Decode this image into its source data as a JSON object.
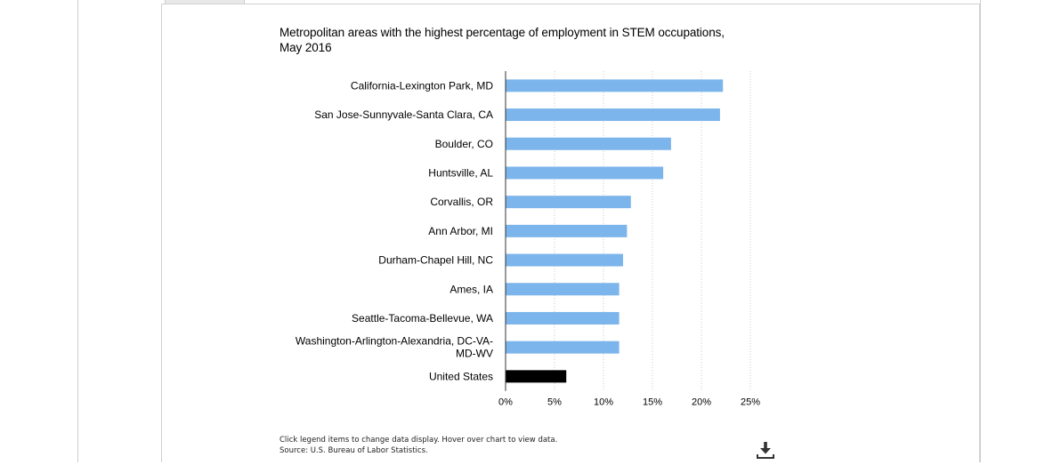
{
  "chart_data": {
    "type": "bar",
    "orientation": "horizontal",
    "title": "Metropolitan areas with the highest percentage of employment in STEM occupations, May 2016",
    "categories": [
      "California-Lexington Park, MD",
      "San Jose-Sunnyvale-Santa Clara, CA",
      "Boulder, CO",
      "Huntsville, AL",
      "Corvallis, OR",
      "Ann Arbor, MI",
      "Durham-Chapel Hill, NC",
      "Ames, IA",
      "Seattle-Tacoma-Bellevue, WA",
      "Washington-Arlington-Alexandria, DC-VA-MD-WV",
      "United States"
    ],
    "label_lines": [
      [
        "California-Lexington Park, MD"
      ],
      [
        "San Jose-Sunnyvale-Santa Clara, CA"
      ],
      [
        "Boulder, CO"
      ],
      [
        "Huntsville, AL"
      ],
      [
        "Corvallis, OR"
      ],
      [
        "Ann Arbor, MI"
      ],
      [
        "Durham-Chapel Hill, NC"
      ],
      [
        "Ames, IA"
      ],
      [
        "Seattle-Tacoma-Bellevue, WA"
      ],
      [
        "Washington-Arlington-Alexandria, DC-VA-",
        "MD-WV"
      ],
      [
        "United States"
      ]
    ],
    "values": [
      22.2,
      21.9,
      16.9,
      16.1,
      12.8,
      12.4,
      12.0,
      11.6,
      11.6,
      11.6,
      6.2
    ],
    "bar_colors": [
      "#7cb5ec",
      "#7cb5ec",
      "#7cb5ec",
      "#7cb5ec",
      "#7cb5ec",
      "#7cb5ec",
      "#7cb5ec",
      "#7cb5ec",
      "#7cb5ec",
      "#7cb5ec",
      "#000000"
    ],
    "xlim": [
      0,
      25
    ],
    "xticks": [
      0,
      5,
      10,
      15,
      20,
      25
    ],
    "xtick_labels": [
      "0%",
      "5%",
      "10%",
      "15%",
      "20%",
      "25%"
    ],
    "grid": true,
    "xlabel": "",
    "ylabel": ""
  },
  "footnote": {
    "line1": "Click legend items to change data display. Hover over chart to view data.",
    "line2": "Source: U.S. Bureau of Labor Statistics."
  },
  "icons": {
    "download": "download-icon"
  }
}
